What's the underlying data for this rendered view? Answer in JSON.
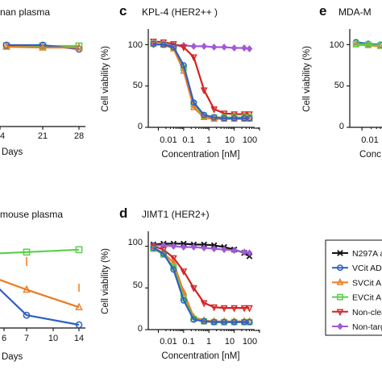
{
  "colors": {
    "N297A": "#111111",
    "VCit": "#2f5fc4",
    "SVCit": "#ea7b24",
    "EVCit": "#58d14a",
    "NonCleavable": "#d42222",
    "NonTargeting": "#a25ad8"
  },
  "legend": {
    "items": [
      {
        "key": "N297A",
        "label": "N297A a",
        "marker": "x"
      },
      {
        "key": "VCit",
        "label": "VCit ADC",
        "marker": "o"
      },
      {
        "key": "SVCit",
        "label": "SVCit A",
        "marker": "triangle"
      },
      {
        "key": "EVCit",
        "label": "EVCit A",
        "marker": "square"
      },
      {
        "key": "NonCleavable",
        "label": "Non-clea",
        "marker": "triangle-down"
      },
      {
        "key": "NonTargeting",
        "label": "Non-targ",
        "marker": "diamond"
      }
    ]
  },
  "chart_data": [
    {
      "type": "line",
      "title": "nan plasma",
      "xlabel": "Days",
      "ylabel": "",
      "x_ticks": [
        "14",
        "21",
        "28"
      ],
      "x": [
        0,
        14,
        28
      ],
      "xlim": [
        0,
        28
      ],
      "ylim": [
        0,
        120
      ],
      "series": [
        {
          "key": "EVCit",
          "x": [
            0,
            14,
            28
          ],
          "values": [
            100,
            100,
            100
          ]
        },
        {
          "key": "VCit",
          "x": [
            0,
            14,
            28
          ],
          "values": [
            101,
            101,
            96
          ]
        },
        {
          "key": "SVCit",
          "x": [
            0,
            14,
            28
          ],
          "values": [
            99,
            98,
            98
          ]
        }
      ]
    },
    {
      "type": "line",
      "title": "mouse plasma",
      "xlabel": "Days",
      "ylabel": "",
      "x_ticks": [
        "6",
        "7",
        "10",
        "14"
      ],
      "xlim": [
        0,
        14
      ],
      "ylim": [
        0,
        120
      ],
      "series": [
        {
          "key": "EVCit",
          "x": [
            0,
            7,
            14
          ],
          "values": [
            92,
            95,
            98
          ]
        },
        {
          "key": "SVCit",
          "x": [
            0,
            7,
            14
          ],
          "values": [
            72,
            48,
            26
          ]
        },
        {
          "key": "VCit",
          "x": [
            3,
            7,
            14
          ],
          "values": [
            52,
            16,
            4
          ]
        }
      ]
    },
    {
      "type": "line",
      "panel_label": "c",
      "title": "KPL-4 (HER2++ )",
      "xlabel": "Concentration [nM]",
      "ylabel": "Cell viability (%)",
      "x_scale": "log",
      "x_ticks": [
        "0.01",
        "0.1",
        "1",
        "10",
        "100"
      ],
      "y_ticks": [
        "0",
        "50",
        "100"
      ],
      "xlim": [
        0.004,
        100
      ],
      "ylim": [
        0,
        115
      ],
      "x": [
        0.0064,
        0.016,
        0.04,
        0.1,
        0.25,
        0.64,
        1.6,
        4,
        10,
        25,
        40
      ],
      "series": [
        {
          "key": "NonTargeting",
          "values": [
            100,
            100,
            99,
            99,
            98,
            98,
            97,
            97,
            96,
            96,
            95
          ]
        },
        {
          "key": "NonCleavable",
          "values": [
            104,
            103,
            101,
            97,
            85,
            45,
            22,
            17,
            16,
            16,
            16
          ]
        },
        {
          "key": "EVCit",
          "values": [
            101,
            100,
            96,
            72,
            28,
            14,
            12,
            12,
            12,
            12,
            12
          ]
        },
        {
          "key": "SVCit",
          "values": [
            101,
            100,
            95,
            68,
            24,
            12,
            10,
            10,
            10,
            10,
            10
          ]
        },
        {
          "key": "VCit",
          "values": [
            101,
            100,
            97,
            75,
            30,
            15,
            12,
            11,
            11,
            11,
            11
          ]
        }
      ]
    },
    {
      "type": "line",
      "panel_label": "d",
      "title": "JIMT1 (HER2+)",
      "xlabel": "Concentration [nM]",
      "ylabel": "Cell viability (%)",
      "x_scale": "log",
      "x_ticks": [
        "0.01",
        "0.1",
        "1",
        "10",
        "100"
      ],
      "y_ticks": [
        "0",
        "50",
        "100"
      ],
      "xlim": [
        0.004,
        100
      ],
      "ylim": [
        0,
        115
      ],
      "x": [
        0.0064,
        0.016,
        0.04,
        0.1,
        0.25,
        0.64,
        1.6,
        4,
        10,
        25,
        40
      ],
      "series": [
        {
          "key": "N297A",
          "values": [
            102,
            103,
            103,
            103,
            102,
            102,
            101,
            99,
            96,
            92,
            88
          ]
        },
        {
          "key": "NonTargeting",
          "values": [
            101,
            101,
            100,
            99,
            99,
            98,
            97,
            96,
            95,
            93,
            92
          ]
        },
        {
          "key": "NonCleavable",
          "values": [
            100,
            96,
            86,
            70,
            50,
            32,
            27,
            26,
            26,
            26,
            26
          ]
        },
        {
          "key": "SVCit",
          "values": [
            98,
            92,
            80,
            45,
            15,
            11,
            10,
            10,
            10,
            10,
            10
          ]
        },
        {
          "key": "EVCit",
          "values": [
            97,
            90,
            75,
            38,
            13,
            10,
            9,
            9,
            9,
            9,
            9
          ]
        },
        {
          "key": "VCit",
          "values": [
            98,
            91,
            72,
            35,
            12,
            10,
            9,
            9,
            9,
            9,
            9
          ]
        }
      ]
    },
    {
      "type": "line",
      "panel_label": "e",
      "title": "MDA-M",
      "xlabel": "Conc",
      "ylabel": "Cell viability (%)",
      "x_scale": "log",
      "x_ticks": [
        "0.01"
      ],
      "y_ticks": [
        "0",
        "50",
        "100"
      ],
      "xlim": [
        0.004,
        0.04
      ],
      "ylim": [
        0,
        115
      ],
      "x": [
        0.0064,
        0.016,
        0.04
      ],
      "series": [
        {
          "key": "VCit",
          "values": [
            103,
            101,
            100
          ]
        },
        {
          "key": "SVCit",
          "values": [
            100,
            99,
            98
          ]
        },
        {
          "key": "EVCit",
          "values": [
            101,
            100,
            99
          ]
        }
      ]
    }
  ]
}
